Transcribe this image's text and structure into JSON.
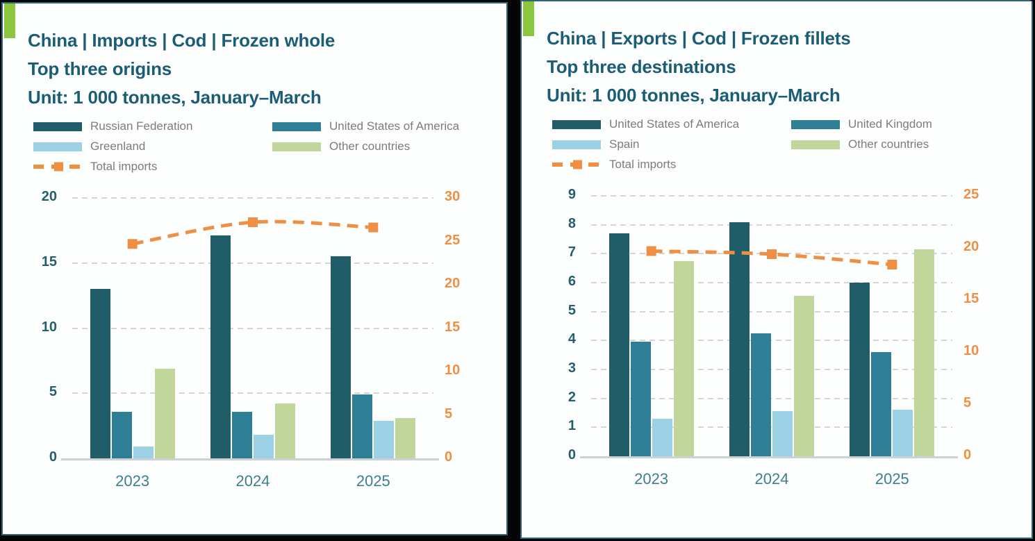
{
  "colors": {
    "series_dark_teal": "#215d68",
    "series_teal": "#2e7f96",
    "series_light_blue": "#9cd1e5",
    "series_light_green": "#c1d69a",
    "line_orange": "#ef8f44",
    "title_teal": "#1c5d76",
    "axis_left_label": "#24606c",
    "axis_right_label": "#ef8f44",
    "year_label": "#3e7e91",
    "legend_text": "#7c7c7c",
    "panel_border": "#2c6575",
    "accent_green": "#8cc63e",
    "gridline": "#d5d5d5",
    "baseline": "#cdd2d4",
    "background": "#050505",
    "panel_bg": "#fdfefe"
  },
  "panels": [
    {
      "title": "China | Imports | Cod | Frozen whole",
      "subtitle": "Top three origins",
      "unit": "Unit: 1 000 tonnes, January–March",
      "legend": [
        {
          "label": "Russian Federation",
          "swatch": "series_dark_teal",
          "kind": "bar"
        },
        {
          "label": "United States of America",
          "swatch": "series_teal",
          "kind": "bar"
        },
        {
          "label": "Greenland",
          "swatch": "series_light_blue",
          "kind": "bar"
        },
        {
          "label": "Other countries",
          "swatch": "series_light_green",
          "kind": "bar"
        },
        {
          "label": "Total imports",
          "swatch": "line_orange",
          "kind": "line"
        }
      ]
    },
    {
      "title": "China | Exports | Cod | Frozen fillets",
      "subtitle": "Top three destinations",
      "unit": "Unit: 1 000 tonnes, January–March",
      "legend": [
        {
          "label": "United States of America",
          "swatch": "series_dark_teal",
          "kind": "bar"
        },
        {
          "label": "United Kingdom",
          "swatch": "series_teal",
          "kind": "bar"
        },
        {
          "label": "Spain",
          "swatch": "series_light_blue",
          "kind": "bar"
        },
        {
          "label": "Other countries",
          "swatch": "series_light_green",
          "kind": "bar"
        },
        {
          "label": "Total imports",
          "swatch": "line_orange",
          "kind": "line"
        }
      ]
    }
  ],
  "chart_data": [
    {
      "type": "bar+line",
      "title": "China | Imports | Cod | Frozen whole — Top three origins",
      "unit": "1 000 tonnes, January–March",
      "categories": [
        "2023",
        "2024",
        "2025"
      ],
      "series": [
        {
          "name": "Russian Federation",
          "axis": "left",
          "color": "series_dark_teal",
          "values": [
            13.0,
            17.1,
            15.5
          ]
        },
        {
          "name": "United States of America",
          "axis": "left",
          "color": "series_teal",
          "values": [
            3.6,
            3.6,
            4.9
          ]
        },
        {
          "name": "Greenland",
          "axis": "left",
          "color": "series_light_blue",
          "values": [
            0.9,
            1.8,
            2.9
          ]
        },
        {
          "name": "Other countries",
          "axis": "left",
          "color": "series_light_green",
          "values": [
            6.9,
            4.2,
            3.1
          ]
        }
      ],
      "line_series": {
        "name": "Total imports",
        "axis": "right",
        "color": "line_orange",
        "values": [
          24.7,
          27.2,
          26.6
        ]
      },
      "left_axis": {
        "min": 0,
        "max": 20,
        "ticks": [
          20,
          15,
          10,
          5,
          0
        ]
      },
      "right_axis": {
        "min": 0,
        "max": 30,
        "ticks": [
          30,
          25,
          20,
          15,
          10,
          5,
          0
        ]
      },
      "grid": "dashed horizontal lines at left-axis ticks",
      "legend_position": "top"
    },
    {
      "type": "bar+line",
      "title": "China | Exports | Cod | Frozen fillets — Top three destinations",
      "unit": "1 000 tonnes, January–March",
      "categories": [
        "2023",
        "2024",
        "2025"
      ],
      "series": [
        {
          "name": "United States of America",
          "axis": "left",
          "color": "series_dark_teal",
          "values": [
            7.7,
            8.1,
            6.0
          ]
        },
        {
          "name": "United Kingdom",
          "axis": "left",
          "color": "series_teal",
          "values": [
            3.95,
            4.25,
            3.6
          ]
        },
        {
          "name": "Spain",
          "axis": "left",
          "color": "series_light_blue",
          "values": [
            1.3,
            1.55,
            1.6
          ]
        },
        {
          "name": "Other countries",
          "axis": "left",
          "color": "series_light_green",
          "values": [
            6.75,
            5.55,
            7.15
          ]
        }
      ],
      "line_series": {
        "name": "Total imports",
        "axis": "right",
        "color": "line_orange",
        "values": [
          19.7,
          19.4,
          18.4
        ]
      },
      "left_axis": {
        "min": 0,
        "max": 9,
        "ticks": [
          9,
          8,
          7,
          6,
          5,
          4,
          3,
          2,
          1,
          0
        ]
      },
      "right_axis": {
        "min": 0,
        "max": 25,
        "ticks": [
          25,
          20,
          15,
          10,
          5,
          0
        ]
      },
      "grid": "dashed horizontal lines at left-axis ticks",
      "legend_position": "top"
    }
  ]
}
